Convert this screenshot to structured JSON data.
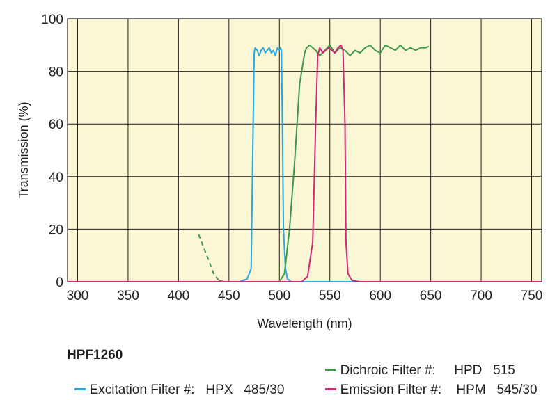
{
  "chart_data": {
    "type": "line",
    "xlabel": "Wavelength (nm)",
    "ylabel": "Transmission (%)",
    "xlim": [
      290,
      760
    ],
    "ylim": [
      0,
      100
    ],
    "x_ticks": [
      300,
      350,
      400,
      450,
      500,
      550,
      600,
      650,
      700,
      750
    ],
    "y_ticks": [
      0,
      20,
      40,
      60,
      80,
      100
    ],
    "grid": true,
    "background": "#fbf6d3",
    "grid_color": "#231f20",
    "product": "HPF1260",
    "series": [
      {
        "name": "Excitation Filter #:  HPX   485/30",
        "key": "excitation",
        "color": "#27a9e1",
        "x": [
          290,
          460,
          468,
          472,
          474,
          475,
          476,
          478,
          480,
          482,
          484,
          486,
          488,
          490,
          492,
          494,
          496,
          498,
          500,
          501,
          502,
          503,
          504,
          506,
          508,
          512,
          520,
          760
        ],
        "y": [
          0,
          0,
          1,
          5,
          60,
          87,
          89,
          88,
          86,
          88,
          89,
          87,
          88,
          89,
          87,
          88,
          86,
          89,
          88,
          89,
          88,
          60,
          20,
          5,
          1,
          0,
          0,
          0
        ]
      },
      {
        "name": "Dichroic Filter #:     HPD    515",
        "key": "dichroic",
        "color": "#3a9a4a",
        "dashed_x": [
          420,
          425,
          430,
          435,
          440
        ],
        "dashed_y": [
          18,
          13,
          8,
          3,
          0.5
        ],
        "x": [
          440,
          445,
          500,
          505,
          510,
          515,
          520,
          525,
          527,
          530,
          533,
          536,
          540,
          545,
          550,
          555,
          560,
          565,
          570,
          575,
          580,
          585,
          590,
          595,
          600,
          605,
          610,
          615,
          620,
          625,
          630,
          635,
          640,
          645,
          648
        ],
        "y": [
          0.5,
          0,
          0,
          3,
          20,
          45,
          75,
          87,
          89,
          90,
          89,
          88,
          86,
          88,
          90,
          87,
          89,
          88,
          86,
          88,
          87,
          89,
          90,
          88,
          87,
          90,
          89,
          88,
          90,
          88,
          89,
          88,
          89,
          89,
          89.5
        ]
      },
      {
        "name": "Emission Filter #:     HPM   545/30",
        "key": "emission",
        "color": "#d32779",
        "x": [
          290,
          522,
          528,
          533,
          536,
          538,
          540,
          543,
          546,
          549,
          552,
          555,
          558,
          561,
          563,
          565,
          566,
          568,
          572,
          580,
          760
        ],
        "y": [
          0,
          0,
          2,
          15,
          60,
          86,
          89,
          87,
          88,
          89,
          88,
          87,
          89,
          90,
          88,
          60,
          15,
          3,
          0.5,
          0,
          0
        ]
      }
    ]
  },
  "legend": {
    "product": "HPF1260",
    "dichroic_label": "Dichroic Filter #:",
    "dichroic_value": "HPD   515",
    "excitation_label": "Excitation Filter #:",
    "excitation_value": "HPX   485/30",
    "emission_label": "Emission Filter #:",
    "emission_value": "HPM   545/30"
  }
}
